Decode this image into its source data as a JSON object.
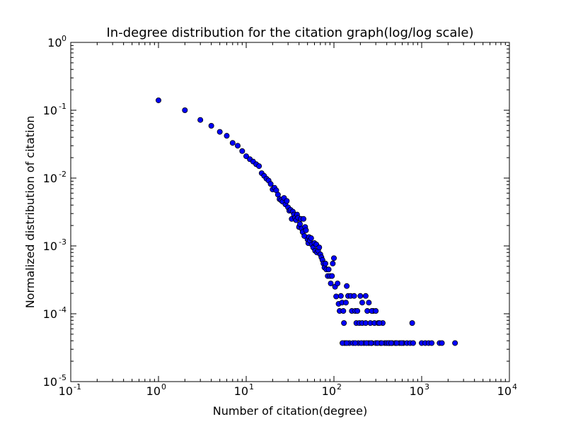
{
  "chart_data": {
    "type": "scatter",
    "title": "In-degree distribution for the citation graph(log/log scale)",
    "xlabel": "Number of citation(degree)",
    "ylabel": "Normalized distribution of citation",
    "xscale": "log",
    "yscale": "log",
    "xlim": [
      0.1,
      10000
    ],
    "ylim": [
      1e-05,
      1
    ],
    "grid": false,
    "legend": "none",
    "marker_color": "#0000ff",
    "marker_edge_color": "#000000",
    "x_ticks": [
      {
        "base": "10",
        "exp": "-1"
      },
      {
        "base": "10",
        "exp": "0"
      },
      {
        "base": "10",
        "exp": "1"
      },
      {
        "base": "10",
        "exp": "2"
      },
      {
        "base": "10",
        "exp": "3"
      },
      {
        "base": "10",
        "exp": "4"
      }
    ],
    "y_ticks": [
      {
        "base": "10",
        "exp": "-5"
      },
      {
        "base": "10",
        "exp": "-4"
      },
      {
        "base": "10",
        "exp": "-3"
      },
      {
        "base": "10",
        "exp": "-2"
      },
      {
        "base": "10",
        "exp": "-1"
      },
      {
        "base": "10",
        "exp": "0"
      }
    ],
    "points": [
      [
        1,
        0.14
      ],
      [
        2,
        0.1
      ],
      [
        3,
        0.072
      ],
      [
        4,
        0.059
      ],
      [
        5,
        0.048
      ],
      [
        6,
        0.042
      ],
      [
        7,
        0.033
      ],
      [
        8,
        0.03
      ],
      [
        9,
        0.025
      ],
      [
        10,
        0.021
      ],
      [
        11,
        0.019
      ],
      [
        12,
        0.0175
      ],
      [
        13,
        0.016
      ],
      [
        14,
        0.015
      ],
      [
        15,
        0.0118
      ],
      [
        16,
        0.0108
      ],
      [
        17,
        0.0098
      ],
      [
        18,
        0.0092
      ],
      [
        19,
        0.0082
      ],
      [
        20,
        0.0068
      ],
      [
        21,
        0.0072
      ],
      [
        22,
        0.0066
      ],
      [
        23,
        0.0057
      ],
      [
        24,
        0.0049
      ],
      [
        25,
        0.0047
      ],
      [
        26,
        0.0045
      ],
      [
        27,
        0.0051
      ],
      [
        28,
        0.0041
      ],
      [
        29,
        0.0046
      ],
      [
        30,
        0.0037
      ],
      [
        31,
        0.0033
      ],
      [
        32,
        0.0034
      ],
      [
        33,
        0.0025
      ],
      [
        34,
        0.0032
      ],
      [
        35,
        0.0029
      ],
      [
        36,
        0.0026
      ],
      [
        37,
        0.0024
      ],
      [
        38,
        0.0029
      ],
      [
        39,
        0.0026
      ],
      [
        40,
        0.0019
      ],
      [
        41,
        0.0021
      ],
      [
        42,
        0.0025
      ],
      [
        43,
        0.0018
      ],
      [
        44,
        0.0016
      ],
      [
        45,
        0.0025
      ],
      [
        46,
        0.0014
      ],
      [
        47,
        0.0019
      ],
      [
        48,
        0.0017
      ],
      [
        50,
        0.00125
      ],
      [
        51,
        0.0011
      ],
      [
        52,
        0.00135
      ],
      [
        53,
        0.0012
      ],
      [
        55,
        0.0013
      ],
      [
        56,
        0.00105
      ],
      [
        58,
        0.00095
      ],
      [
        60,
        0.0011
      ],
      [
        61,
        0.00085
      ],
      [
        63,
        0.00105
      ],
      [
        64,
        0.0008
      ],
      [
        66,
        0.00085
      ],
      [
        68,
        0.00095
      ],
      [
        70,
        0.00075
      ],
      [
        72,
        0.00068
      ],
      [
        74,
        0.00062
      ],
      [
        76,
        0.00055
      ],
      [
        78,
        0.00048
      ],
      [
        80,
        0.00055
      ],
      [
        82,
        0.00045
      ],
      [
        85,
        0.00036
      ],
      [
        87,
        0.00045
      ],
      [
        90,
        0.00036
      ],
      [
        92,
        0.00028
      ],
      [
        95,
        0.00036
      ],
      [
        97,
        0.00055
      ],
      [
        100,
        0.00066
      ],
      [
        103,
        0.00025
      ],
      [
        106,
        0.00018
      ],
      [
        110,
        0.00028
      ],
      [
        113,
        0.00014
      ],
      [
        116,
        0.00011
      ],
      [
        120,
        0.000183
      ],
      [
        124,
        0.000146
      ],
      [
        128,
        0.00011
      ],
      [
        130,
        7.3e-05
      ],
      [
        133,
        3.7e-05
      ],
      [
        137,
        0.000146
      ],
      [
        140,
        0.000256
      ],
      [
        145,
        0.000183
      ],
      [
        150,
        3.7e-05
      ],
      [
        155,
        0.000183
      ],
      [
        160,
        0.00011
      ],
      [
        165,
        3.7e-05
      ],
      [
        170,
        0.000183
      ],
      [
        175,
        0.00011
      ],
      [
        180,
        7.3e-05
      ],
      [
        185,
        0.00011
      ],
      [
        190,
        3.7e-05
      ],
      [
        195,
        7.3e-05
      ],
      [
        200,
        0.000183
      ],
      [
        210,
        7.3e-05
      ],
      [
        220,
        3.7e-05
      ],
      [
        230,
        7.3e-05
      ],
      [
        240,
        0.00011
      ],
      [
        250,
        3.7e-05
      ],
      [
        260,
        7.3e-05
      ],
      [
        270,
        3.7e-05
      ],
      [
        280,
        0.00011
      ],
      [
        290,
        7.3e-05
      ],
      [
        300,
        3.7e-05
      ],
      [
        320,
        7.3e-05
      ],
      [
        340,
        3.7e-05
      ],
      [
        360,
        7.3e-05
      ],
      [
        380,
        3.7e-05
      ],
      [
        400,
        3.7e-05
      ],
      [
        430,
        3.7e-05
      ],
      [
        460,
        3.7e-05
      ],
      [
        500,
        3.7e-05
      ],
      [
        560,
        3.7e-05
      ],
      [
        620,
        3.7e-05
      ],
      [
        680,
        3.7e-05
      ],
      [
        740,
        3.7e-05
      ],
      [
        780,
        7.3e-05
      ],
      [
        800,
        3.7e-05
      ],
      [
        1000,
        3.7e-05
      ],
      [
        1100,
        3.7e-05
      ],
      [
        1200,
        3.7e-05
      ],
      [
        1300,
        3.7e-05
      ],
      [
        1600,
        3.7e-05
      ],
      [
        1700,
        3.7e-05
      ],
      [
        2400,
        3.7e-05
      ],
      [
        210,
        0.000146
      ],
      [
        230,
        0.000183
      ],
      [
        250,
        0.000146
      ],
      [
        270,
        0.00011
      ],
      [
        300,
        0.00011
      ],
      [
        330,
        7.3e-05
      ],
      [
        125,
        3.7e-05
      ],
      [
        140,
        3.7e-05
      ],
      [
        175,
        3.7e-05
      ],
      [
        205,
        3.7e-05
      ],
      [
        235,
        3.7e-05
      ],
      [
        265,
        3.7e-05
      ],
      [
        315,
        3.7e-05
      ],
      [
        350,
        3.7e-05
      ],
      [
        420,
        3.7e-05
      ],
      [
        450,
        3.7e-05
      ],
      [
        520,
        3.7e-05
      ],
      [
        590,
        3.7e-05
      ]
    ]
  }
}
